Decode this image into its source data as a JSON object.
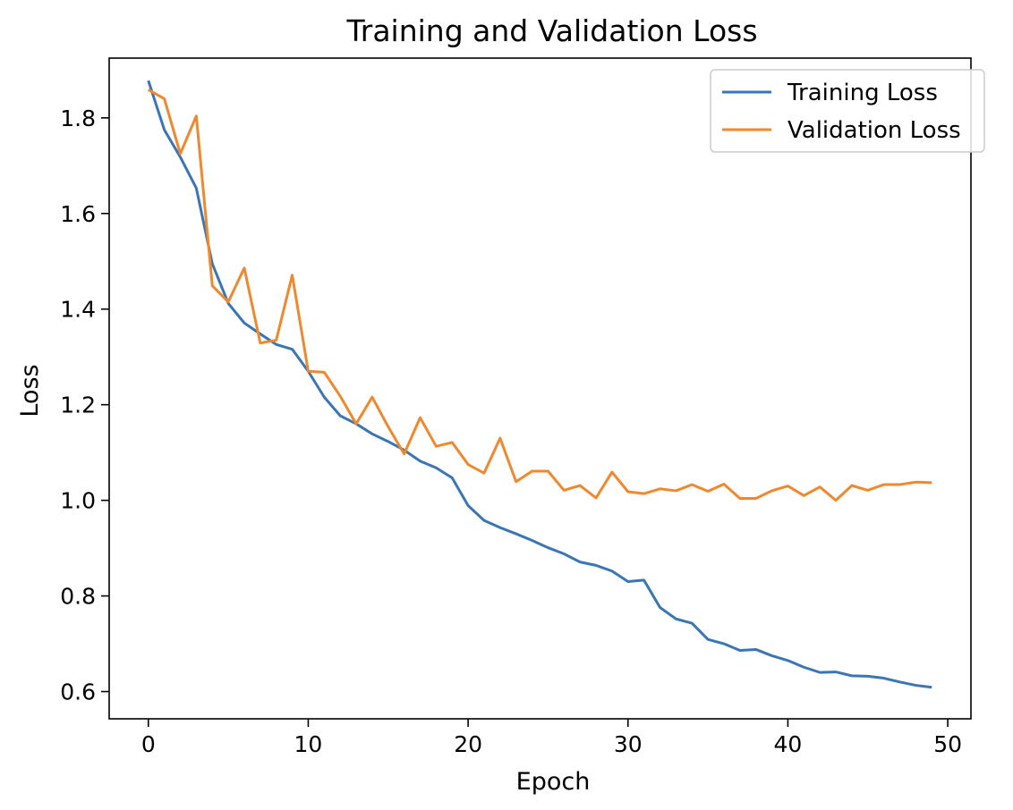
{
  "chart_data": {
    "type": "line",
    "title": "Training and Validation Loss",
    "xlabel": "Epoch",
    "ylabel": "Loss",
    "xlim": [
      -2.45,
      51.45
    ],
    "ylim": [
      0.543,
      1.925
    ],
    "xticks": [
      0,
      10,
      20,
      30,
      40,
      50
    ],
    "yticks": [
      0.6,
      0.8,
      1.0,
      1.2,
      1.4,
      1.6,
      1.8
    ],
    "grid": false,
    "legend_position": "top-right",
    "x": [
      0,
      1,
      2,
      3,
      4,
      5,
      6,
      7,
      8,
      9,
      10,
      11,
      12,
      13,
      14,
      15,
      16,
      17,
      18,
      19,
      20,
      21,
      22,
      23,
      24,
      25,
      26,
      27,
      28,
      29,
      30,
      31,
      32,
      33,
      34,
      35,
      36,
      37,
      38,
      39,
      40,
      41,
      42,
      43,
      44,
      45,
      46,
      47,
      48,
      49
    ],
    "series": [
      {
        "name": "Training Loss",
        "color": "#3a76b5",
        "values": [
          1.878,
          1.775,
          1.718,
          1.653,
          1.495,
          1.412,
          1.371,
          1.348,
          1.326,
          1.316,
          1.27,
          1.216,
          1.177,
          1.16,
          1.139,
          1.123,
          1.105,
          1.082,
          1.068,
          1.047,
          0.989,
          0.958,
          0.943,
          0.93,
          0.916,
          0.901,
          0.888,
          0.871,
          0.864,
          0.852,
          0.83,
          0.833,
          0.776,
          0.752,
          0.743,
          0.709,
          0.7,
          0.686,
          0.688,
          0.675,
          0.665,
          0.651,
          0.64,
          0.641,
          0.633,
          0.632,
          0.628,
          0.62,
          0.613,
          0.609
        ]
      },
      {
        "name": "Validation Loss",
        "color": "#f0882e",
        "values": [
          1.859,
          1.84,
          1.725,
          1.804,
          1.449,
          1.415,
          1.486,
          1.329,
          1.335,
          1.471,
          1.27,
          1.268,
          1.218,
          1.16,
          1.216,
          1.154,
          1.097,
          1.173,
          1.113,
          1.121,
          1.075,
          1.057,
          1.13,
          1.039,
          1.061,
          1.061,
          1.021,
          1.031,
          1.005,
          1.059,
          1.018,
          1.014,
          1.024,
          1.02,
          1.033,
          1.019,
          1.034,
          1.004,
          1.004,
          1.02,
          1.03,
          1.01,
          1.028,
          1.0,
          1.031,
          1.021,
          1.033,
          1.033,
          1.038,
          1.037
        ]
      }
    ]
  }
}
